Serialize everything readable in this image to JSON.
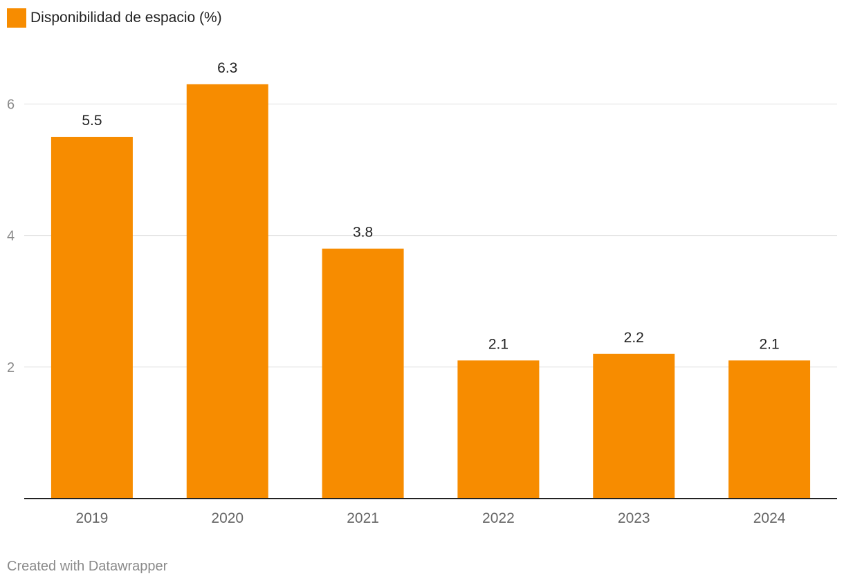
{
  "chart_data": {
    "type": "bar",
    "categories": [
      "2019",
      "2020",
      "2021",
      "2022",
      "2023",
      "2024"
    ],
    "series": [
      {
        "name": "Disponibilidad de espacio (%)",
        "values": [
          5.5,
          6.3,
          3.8,
          2.1,
          2.2,
          2.1
        ]
      }
    ],
    "data_labels": [
      "5.5",
      "6.3",
      "3.8",
      "2.1",
      "2.2",
      "2.1"
    ],
    "y_ticks": [
      2,
      4,
      6
    ],
    "y_tick_labels": [
      "2",
      "4",
      "6"
    ],
    "ylim": [
      0,
      6.9
    ],
    "grid": true,
    "legend_position": "top-left",
    "title": "",
    "xlabel": "",
    "ylabel": "",
    "colors": {
      "bar": "#f78c00",
      "grid": "#e0e0e0",
      "axis": "#222222",
      "tick_label": "#8a8a8a"
    }
  },
  "footer": {
    "credit": "Created with Datawrapper"
  }
}
